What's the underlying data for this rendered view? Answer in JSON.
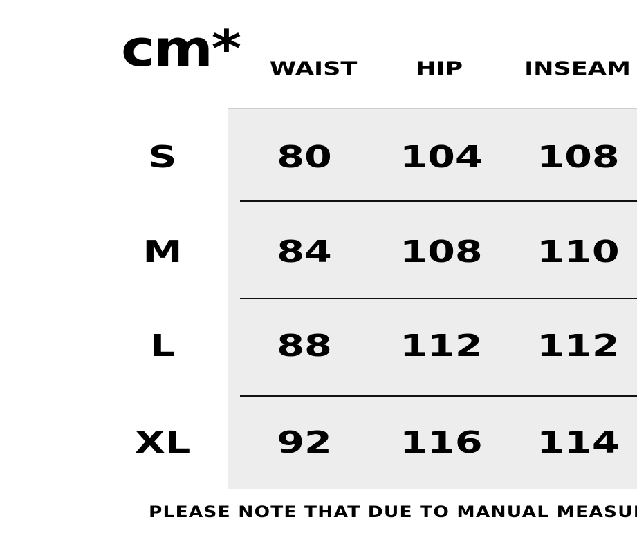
{
  "unit_label": "cm*",
  "columns": [
    "WAIST",
    "HIP",
    "INSEAM"
  ],
  "rows": [
    {
      "size": "S",
      "values": [
        "80",
        "104",
        "108"
      ]
    },
    {
      "size": "M",
      "values": [
        "84",
        "108",
        "110"
      ]
    },
    {
      "size": "L",
      "values": [
        "88",
        "112",
        "112"
      ]
    },
    {
      "size": "XL",
      "values": [
        "92",
        "116",
        "114"
      ]
    }
  ],
  "note": "PLEASE NOTE THAT DUE TO MANUAL MEASURI",
  "colors": {
    "panel": "#ededed",
    "text": "#000000"
  }
}
